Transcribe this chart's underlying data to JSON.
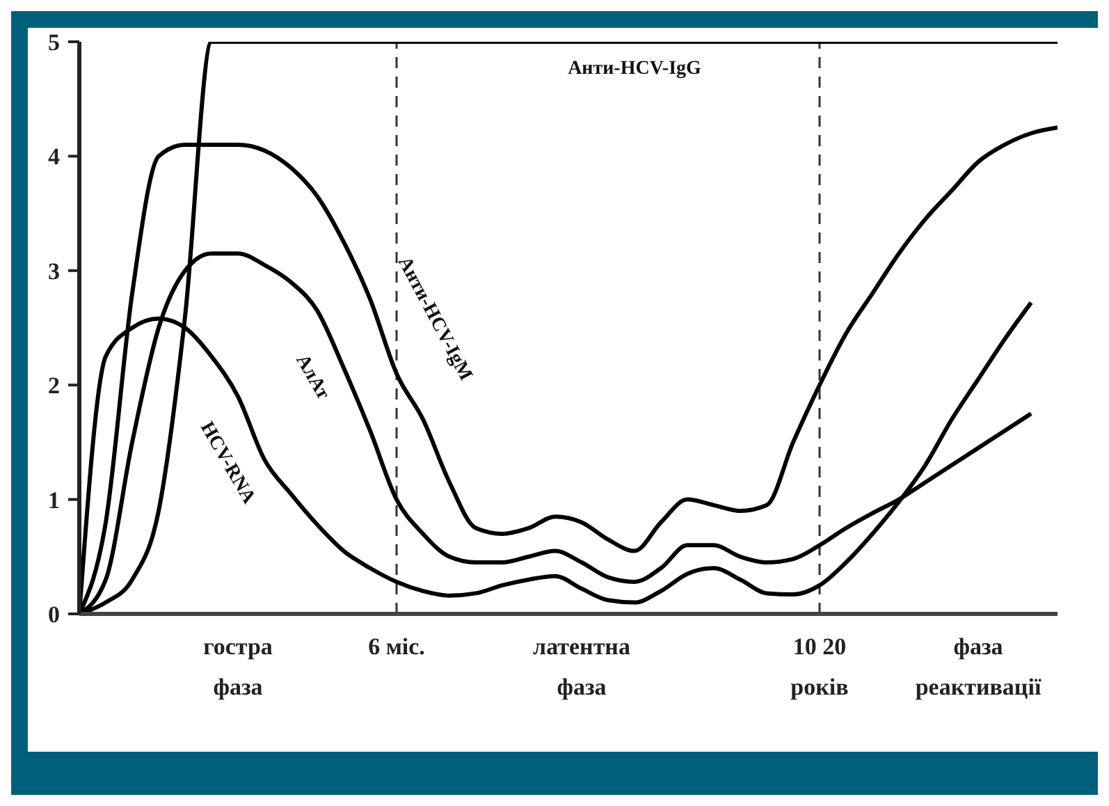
{
  "chart_data": {
    "type": "line",
    "categories": [
      null,
      null,
      null,
      null,
      null,
      null,
      "гостра\nфаза",
      null,
      null,
      null,
      null,
      null,
      "6 міс.",
      null,
      null,
      null,
      null,
      null,
      null,
      "латентна\nфаза",
      null,
      null,
      null,
      null,
      null,
      null,
      null,
      null,
      "10 20\nроків",
      null,
      null,
      null,
      null,
      null,
      "фаза\nреактивації",
      null,
      null,
      null
    ],
    "series": [
      {
        "name": "Анти-HCV-IgG",
        "color": "#000000",
        "values": [
          0,
          0.1,
          0.3,
          0.9,
          2.6,
          5,
          5,
          5,
          5,
          5,
          5,
          5,
          5,
          5,
          5,
          5,
          5,
          5,
          5,
          5,
          5,
          5,
          5,
          5,
          5,
          5,
          5,
          5,
          5,
          5,
          5,
          5,
          5,
          5,
          5,
          5,
          5,
          5
        ]
      },
      {
        "name": "Анти-HCV-IgM",
        "color": "#000000",
        "values": [
          0,
          0.8,
          2.8,
          4,
          4.1,
          4.1,
          4.1,
          4.05,
          3.9,
          3.65,
          3.25,
          2.75,
          2.1,
          1.7,
          1.15,
          0.75,
          0.7,
          0.75,
          0.85,
          0.8,
          0.65,
          0.55,
          0.8,
          1,
          0.95,
          0.9,
          0.95,
          1.5,
          2,
          2.45,
          2.8,
          3.15,
          3.45,
          3.7,
          3.95,
          4.1,
          4.2,
          4.25
        ]
      },
      {
        "name": "АлАт",
        "color": "#000000",
        "values": [
          0,
          0.3,
          1.5,
          2.5,
          3,
          3.15,
          3.15,
          3.05,
          2.9,
          2.65,
          2.15,
          1.6,
          1,
          0.7,
          0.5,
          0.45,
          0.45,
          0.5,
          0.55,
          0.45,
          0.32,
          0.28,
          0.4,
          0.6,
          0.6,
          0.5,
          0.45,
          0.48,
          0.6,
          0.75,
          0.88,
          1,
          1.15,
          1.3,
          1.45,
          1.6,
          1.75,
          null
        ]
      },
      {
        "name": "HCV-RNA",
        "color": "#000000",
        "values": [
          0,
          2.25,
          2.5,
          2.58,
          2.5,
          2.25,
          1.9,
          1.35,
          1.05,
          0.78,
          0.55,
          0.4,
          0.28,
          0.2,
          0.16,
          0.18,
          0.25,
          0.3,
          0.33,
          0.22,
          0.12,
          0.1,
          0.2,
          0.35,
          0.4,
          0.3,
          0.18,
          0.17,
          0.25,
          0.45,
          0.7,
          0.98,
          1.3,
          1.7,
          2.05,
          2.4,
          2.72,
          null
        ]
      }
    ],
    "ylim": [
      0,
      5
    ],
    "yticks": [
      0,
      1,
      2,
      3,
      4,
      5
    ],
    "ref_lines": [
      {
        "axis": "x",
        "value": "6 міс.",
        "line_style": "dashed"
      },
      {
        "axis": "x",
        "value": "10 20\nроків",
        "line_style": "dashed"
      }
    ],
    "marker": "none",
    "line_style": "solid",
    "grid": false,
    "legend": false
  }
}
